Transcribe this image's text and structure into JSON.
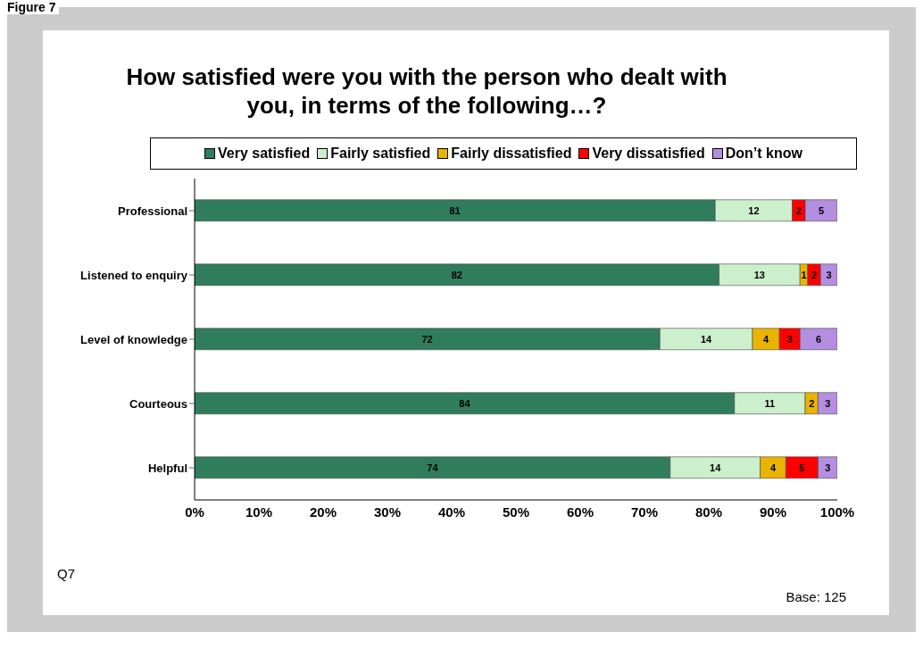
{
  "chart_data": {
    "type": "bar",
    "orientation": "horizontal",
    "stacked": true,
    "title": "How satisfied were you with the person who dealt with you, in terms of the following…?",
    "categories": [
      "Professional",
      "Listened to enquiry",
      "Level of knowledge",
      "Courteous",
      "Helpful"
    ],
    "series": [
      {
        "name": "Very satisfied",
        "color": "#2f7d5c",
        "values": [
          81,
          81.6,
          72.4,
          84,
          74
        ],
        "value_labels": [
          "81",
          "82",
          "72",
          "84",
          "74"
        ]
      },
      {
        "name": "Fairly satisfied",
        "color": "#ccefcc",
        "values": [
          12,
          12.6,
          14.4,
          11,
          14
        ],
        "value_labels": [
          "12",
          "13",
          "14",
          "11",
          "14"
        ]
      },
      {
        "name": "Fairly dissatisfied",
        "color": "#e8b400",
        "values": [
          null,
          1.2,
          4.2,
          2,
          4
        ],
        "value_labels": [
          null,
          "1",
          "4",
          "2",
          "4"
        ]
      },
      {
        "name": "Very dissatisfied",
        "color": "#ff0000",
        "values": [
          2,
          2,
          3.2,
          null,
          5
        ],
        "value_labels": [
          "2",
          "2",
          "3",
          null,
          "5"
        ]
      },
      {
        "name": "Don’t know",
        "color": "#b48ee0",
        "values": [
          5,
          2.6,
          5.8,
          3,
          3
        ],
        "value_labels": [
          "5",
          "3",
          "6",
          "3",
          "3"
        ]
      }
    ],
    "xlim": [
      0,
      100
    ],
    "xticks": [
      {
        "value": 0,
        "label": "0%"
      },
      {
        "value": 10,
        "label": "10%"
      },
      {
        "value": 20,
        "label": "20%"
      },
      {
        "value": 30,
        "label": "30%"
      },
      {
        "value": 40,
        "label": "40%"
      },
      {
        "value": 50,
        "label": "50%"
      },
      {
        "value": 60,
        "label": "60%"
      },
      {
        "value": 70,
        "label": "70%"
      },
      {
        "value": 80,
        "label": "80%"
      },
      {
        "value": 90,
        "label": "90%"
      },
      {
        "value": 100,
        "label": "100%"
      }
    ],
    "legend": "top",
    "grid": false,
    "annotations": [
      "Figure 7",
      "Q7",
      "Base: 125"
    ]
  }
}
